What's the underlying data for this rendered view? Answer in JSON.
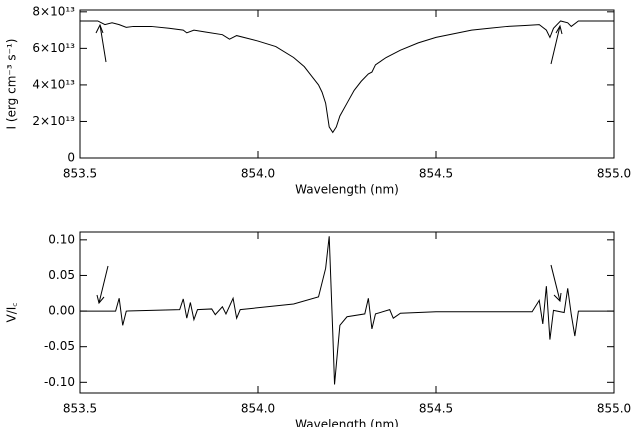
{
  "chart_data": [
    {
      "type": "line",
      "x_label": "Wavelength (nm)",
      "y_label": "I (erg cm⁻³ s⁻¹)",
      "color": "#000000",
      "xlim": [
        853.5,
        855.0
      ],
      "ylim": [
        0,
        81000000000000.0
      ],
      "xticks": [
        853.5,
        {
          "value": 854.0,
          "label": "854.0"
        },
        854.5,
        {
          "value": 855.0,
          "label": "855.0"
        }
      ],
      "yticks": [
        0,
        {
          "value": 20000000000000.0,
          "label": "2×10¹³"
        },
        {
          "value": 40000000000000.0,
          "label": "4×10¹³"
        },
        {
          "value": 60000000000000.0,
          "label": "6×10¹³"
        },
        {
          "value": 80000000000000.0,
          "label": "8×10¹³"
        }
      ],
      "x": [
        853.5,
        853.55,
        853.57,
        853.59,
        853.61,
        853.63,
        853.65,
        853.7,
        853.75,
        853.79,
        853.8,
        853.82,
        853.85,
        853.9,
        853.92,
        853.94,
        854.0,
        854.05,
        854.1,
        854.13,
        854.15,
        854.17,
        854.18,
        854.19,
        854.2,
        854.21,
        854.22,
        854.23,
        854.25,
        854.27,
        854.29,
        854.31,
        854.32,
        854.33,
        854.36,
        854.4,
        854.45,
        854.5,
        854.55,
        854.6,
        854.65,
        854.7,
        854.75,
        854.79,
        854.81,
        854.82,
        854.83,
        854.85,
        854.87,
        854.88,
        854.9,
        855.0
      ],
      "values": [
        75000000000000.0,
        75000000000000.0,
        73000000000000.0,
        74000000000000.0,
        73000000000000.0,
        71500000000000.0,
        72000000000000.0,
        72000000000000.0,
        71000000000000.0,
        70000000000000.0,
        68500000000000.0,
        70000000000000.0,
        69000000000000.0,
        67500000000000.0,
        65000000000000.0,
        67000000000000.0,
        64000000000000.0,
        61000000000000.0,
        55000000000000.0,
        50000000000000.0,
        45000000000000.0,
        40000000000000.0,
        36000000000000.0,
        30000000000000.0,
        17000000000000.0,
        14000000000000.0,
        17000000000000.0,
        23000000000000.0,
        30000000000000.0,
        37000000000000.0,
        42000000000000.0,
        46000000000000.0,
        47000000000000.0,
        51000000000000.0,
        55000000000000.0,
        59000000000000.0,
        63000000000000.0,
        66000000000000.0,
        68000000000000.0,
        70000000000000.0,
        71000000000000.0,
        72000000000000.0,
        72500000000000.0,
        73000000000000.0,
        70000000000000.0,
        66000000000000.0,
        71000000000000.0,
        75000000000000.0,
        74000000000000.0,
        72000000000000.0,
        75000000000000.0,
        75000000000000.0
      ]
    },
    {
      "type": "line",
      "x_label": "Wavelength (nm)",
      "y_label": "V/I꜀",
      "color": "#000000",
      "xlim": [
        853.5,
        855.0
      ],
      "ylim": [
        -0.115,
        0.111
      ],
      "xticks": [
        853.5,
        {
          "value": 854.0,
          "label": "854.0"
        },
        854.5,
        {
          "value": 855.0,
          "label": "855.0"
        }
      ],
      "yticks": [
        {
          "value": 0.1,
          "label": "0.10"
        },
        0.05,
        {
          "value": 0,
          "label": "0.00"
        },
        -0.05,
        {
          "value": -0.1,
          "label": "-0.10"
        }
      ],
      "x": [
        853.5,
        853.6,
        853.61,
        853.62,
        853.63,
        853.78,
        853.79,
        853.8,
        853.81,
        853.82,
        853.83,
        853.87,
        853.88,
        853.9,
        853.91,
        853.93,
        853.94,
        853.95,
        854.1,
        854.17,
        854.19,
        854.2,
        854.21,
        854.215,
        854.23,
        854.25,
        854.3,
        854.31,
        854.32,
        854.33,
        854.37,
        854.38,
        854.4,
        854.5,
        854.77,
        854.79,
        854.8,
        854.81,
        854.82,
        854.83,
        854.86,
        854.87,
        854.88,
        854.89,
        854.9,
        855.0
      ],
      "values": [
        0,
        0,
        0.018,
        -0.02,
        0,
        0.002,
        0.017,
        -0.01,
        0.012,
        -0.012,
        0.002,
        0.003,
        -0.005,
        0.006,
        -0.004,
        0.018,
        -0.01,
        0.002,
        0.01,
        0.02,
        0.06,
        0.105,
        -0.03,
        -0.103,
        -0.02,
        -0.008,
        -0.004,
        0.018,
        -0.025,
        -0.004,
        0.002,
        -0.01,
        -0.003,
        -0.001,
        -0.001,
        0.015,
        -0.018,
        0.035,
        -0.04,
        0.001,
        -0.002,
        0.032,
        -0.005,
        -0.035,
        0,
        0
      ]
    }
  ]
}
